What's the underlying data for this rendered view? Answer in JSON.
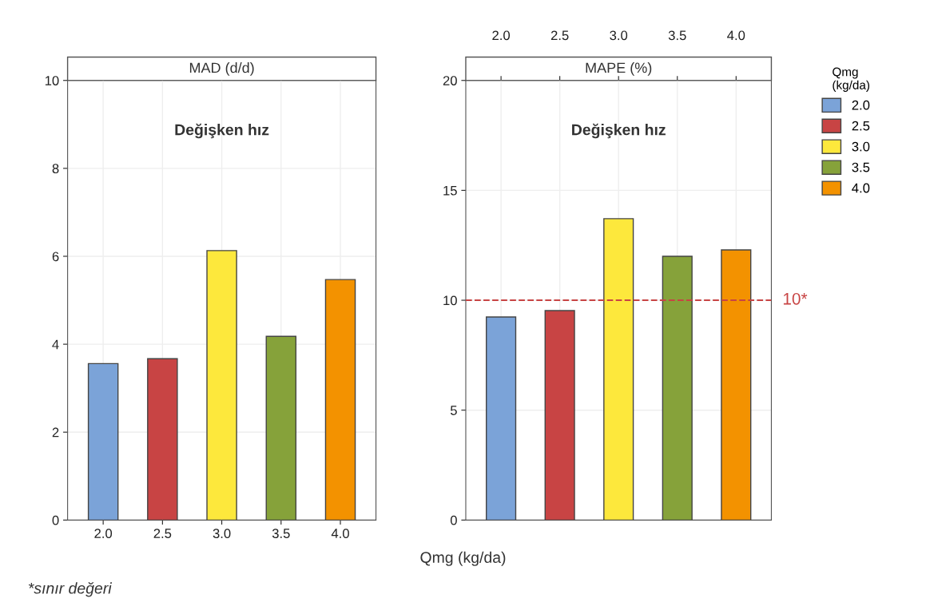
{
  "chart_data": [
    {
      "type": "bar",
      "title": "MAD (d/d)",
      "xlabel": "Qmg (kg/da)",
      "categories": [
        "2.0",
        "2.5",
        "3.0",
        "3.5",
        "4.0"
      ],
      "series": [
        {
          "name": "2.0",
          "color": "#7ba3d8",
          "values": [
            3.56,
            null,
            null,
            null,
            null
          ]
        },
        {
          "name": "2.5",
          "color": "#c84444",
          "values": [
            null,
            3.67,
            null,
            null,
            null
          ]
        },
        {
          "name": "3.0",
          "color": "#fde83c",
          "values": [
            null,
            null,
            6.13,
            null,
            null
          ]
        },
        {
          "name": "3.5",
          "color": "#86a23a",
          "values": [
            null,
            null,
            null,
            4.18,
            null
          ]
        },
        {
          "name": "4.0",
          "color": "#f39200",
          "values": [
            null,
            null,
            null,
            null,
            5.47
          ]
        }
      ],
      "ylim": [
        0,
        10
      ],
      "yticks": [
        0,
        2,
        4,
        6,
        8,
        10
      ],
      "grid": true,
      "legend": "right",
      "legend_title": "Qmg\n(kg/da)",
      "annotations": [
        "Değişken hız",
        "*sınır değeri"
      ]
    },
    {
      "type": "bar",
      "title": "MAPE (%)",
      "categories": [
        "2.0",
        "2.5",
        "3.0",
        "3.5",
        "4.0"
      ],
      "series": [
        {
          "name": "2.0",
          "color": "#7ba3d8",
          "values": [
            9.24,
            null,
            null,
            null,
            null
          ]
        },
        {
          "name": "2.5",
          "color": "#c84444",
          "values": [
            null,
            9.53,
            null,
            null,
            null
          ]
        },
        {
          "name": "3.0",
          "color": "#fde83c",
          "values": [
            null,
            null,
            13.71,
            null,
            null
          ]
        },
        {
          "name": "3.5",
          "color": "#86a23a",
          "values": [
            null,
            null,
            null,
            12.0,
            null
          ]
        },
        {
          "name": "4.0",
          "color": "#f39200",
          "values": [
            null,
            null,
            null,
            null,
            12.29
          ]
        }
      ],
      "ylim": [
        0,
        20
      ],
      "yticks": [
        0,
        5,
        10,
        15,
        20
      ],
      "grid": true,
      "ref_lines": [
        {
          "axis": "y",
          "value": 10,
          "label": "10*",
          "color": "#c84444",
          "line_style": "dashed"
        }
      ],
      "annotations": [
        "Değişken hız"
      ]
    }
  ]
}
